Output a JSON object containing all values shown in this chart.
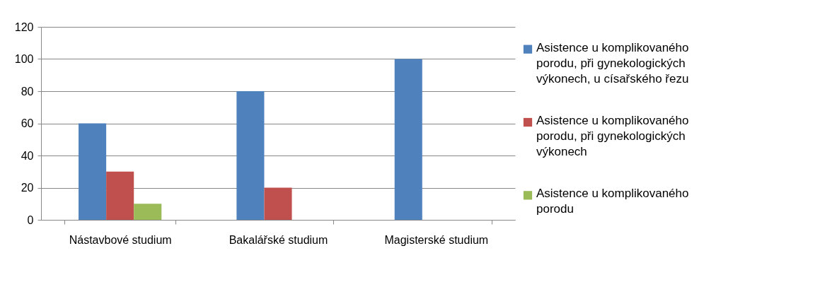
{
  "chart_data": {
    "type": "bar",
    "categories": [
      "Nástavbové studium",
      "Bakalářské studium",
      "Magisterské studium"
    ],
    "series": [
      {
        "name": "Asistence u komplikovaného porodu, při gynekologických výkonech, u císařského řezu",
        "color": "#4f81bd",
        "values": [
          60,
          80,
          100
        ]
      },
      {
        "name": "Asistence u komplikovaného porodu, při gynekologických výkonech",
        "color": "#c0504d",
        "values": [
          30,
          20,
          0
        ]
      },
      {
        "name": "Asistence u komplikovaného porodu",
        "color": "#9bbb59",
        "values": [
          10,
          0,
          0
        ]
      }
    ],
    "ylim": [
      0,
      120
    ],
    "yticks": [
      0,
      20,
      40,
      60,
      80,
      100,
      120
    ],
    "grid": "y",
    "legend": "right"
  }
}
